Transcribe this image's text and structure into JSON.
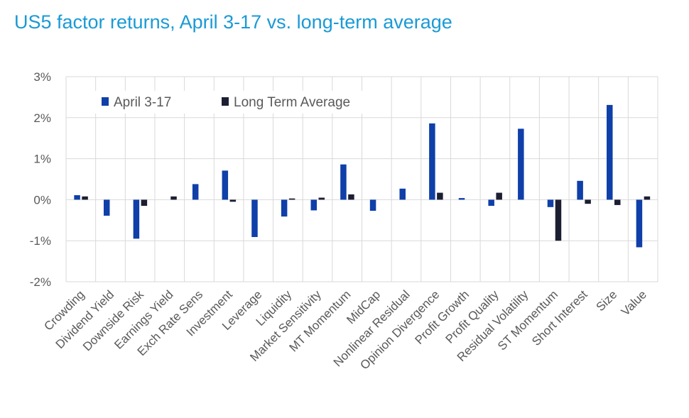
{
  "title": "US5 factor returns, April 3-17 vs. long-term average",
  "colors": {
    "april": "#0f3fa8",
    "lta": "#1c1f33",
    "grid": "#d9d9d9",
    "text": "#595959",
    "title": "#1a9ad6"
  },
  "chart_data": {
    "type": "bar",
    "title": "US5 factor returns, April 3-17 vs. long-term average",
    "xlabel": "",
    "ylabel": "",
    "ylim": [
      -2,
      3
    ],
    "yticks": [
      -2,
      -1,
      0,
      1,
      2,
      3
    ],
    "ytick_labels": [
      "-2%",
      "-1%",
      "0%",
      "1%",
      "2%",
      "3%"
    ],
    "grid": true,
    "legend_position": "top-left",
    "categories": [
      "Crowding",
      "Dividend Yield",
      "Downside Risk",
      "Earnings Yield",
      "Exch Rate Sens",
      "Investment",
      "Leverage",
      "Liquidity",
      "Market Sensitivity",
      "MT Momentum",
      "MidCap",
      "Nonlinear Residual",
      "Opinion Divergence",
      "Profit Growth",
      "Profit Quality",
      "Residual Volatility",
      "ST Momentum",
      "Short Interest",
      "Size",
      "Value"
    ],
    "series": [
      {
        "name": "April 3-17",
        "values": [
          0.11,
          -0.39,
          -0.95,
          0.0,
          0.38,
          0.71,
          -0.91,
          -0.41,
          -0.26,
          0.86,
          -0.27,
          0.27,
          1.86,
          0.04,
          -0.15,
          1.73,
          -0.18,
          0.46,
          2.31,
          -1.16
        ]
      },
      {
        "name": "Long Term Average",
        "values": [
          0.08,
          0.0,
          -0.15,
          0.08,
          0.0,
          -0.05,
          0.0,
          0.03,
          0.05,
          0.13,
          0.0,
          0.0,
          0.17,
          0.0,
          0.17,
          0.0,
          -1.0,
          -0.1,
          -0.13,
          0.08
        ]
      }
    ]
  }
}
